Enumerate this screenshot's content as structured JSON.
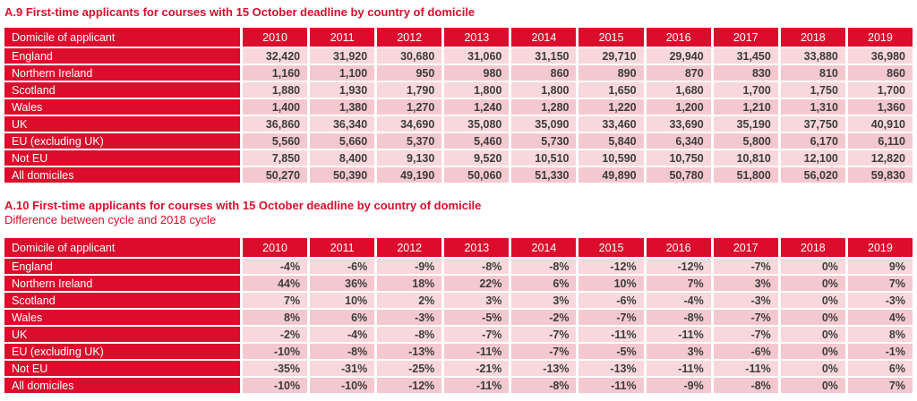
{
  "colors": {
    "brand_red": "#dc0c2c",
    "cell_pink_light": "#f8d8dc",
    "cell_pink_dark": "#f4c8cf",
    "header_text": "#ffffff",
    "value_text": "#3c3c3c",
    "page_background": "#ffffff"
  },
  "tables": [
    {
      "name": "A.9",
      "title": "A.9 First-time applicants for courses with 15 October deadline by country of domicile",
      "label_header": "Domicile of applicant",
      "columns": [
        "2010",
        "2011",
        "2012",
        "2013",
        "2014",
        "2015",
        "2016",
        "2017",
        "2018",
        "2019"
      ],
      "rows": [
        {
          "label": "England",
          "values": [
            "32,420",
            "31,920",
            "30,680",
            "31,060",
            "31,150",
            "29,710",
            "29,940",
            "31,450",
            "33,880",
            "36,980"
          ]
        },
        {
          "label": "Northern Ireland",
          "values": [
            "1,160",
            "1,100",
            "950",
            "980",
            "860",
            "890",
            "870",
            "830",
            "810",
            "860"
          ]
        },
        {
          "label": "Scotland",
          "values": [
            "1,880",
            "1,930",
            "1,790",
            "1,800",
            "1,800",
            "1,650",
            "1,680",
            "1,700",
            "1,750",
            "1,700"
          ]
        },
        {
          "label": "Wales",
          "values": [
            "1,400",
            "1,380",
            "1,270",
            "1,240",
            "1,280",
            "1,220",
            "1,200",
            "1,210",
            "1,310",
            "1,360"
          ]
        },
        {
          "label": "UK",
          "values": [
            "36,860",
            "36,340",
            "34,690",
            "35,080",
            "35,090",
            "33,460",
            "33,690",
            "35,190",
            "37,750",
            "40,910"
          ]
        },
        {
          "label": "EU (excluding UK)",
          "values": [
            "5,560",
            "5,660",
            "5,370",
            "5,460",
            "5,730",
            "5,840",
            "6,340",
            "5,800",
            "6,170",
            "6,110"
          ]
        },
        {
          "label": "Not EU",
          "values": [
            "7,850",
            "8,400",
            "9,130",
            "9,520",
            "10,510",
            "10,590",
            "10,750",
            "10,810",
            "12,100",
            "12,820"
          ]
        },
        {
          "label": "All domiciles",
          "values": [
            "50,270",
            "50,390",
            "49,190",
            "50,060",
            "51,330",
            "49,890",
            "50,780",
            "51,800",
            "56,020",
            "59,830"
          ]
        }
      ]
    },
    {
      "name": "A.10",
      "title": "A.10 First-time applicants for courses with 15 October deadline by country of domicile",
      "subtitle": "Difference between cycle and 2018 cycle",
      "label_header": "Domicile of applicant",
      "columns": [
        "2010",
        "2011",
        "2012",
        "2013",
        "2014",
        "2015",
        "2016",
        "2017",
        "2018",
        "2019"
      ],
      "rows": [
        {
          "label": "England",
          "values": [
            "-4%",
            "-6%",
            "-9%",
            "-8%",
            "-8%",
            "-12%",
            "-12%",
            "-7%",
            "0%",
            "9%"
          ]
        },
        {
          "label": "Northern Ireland",
          "values": [
            "44%",
            "36%",
            "18%",
            "22%",
            "6%",
            "10%",
            "7%",
            "3%",
            "0%",
            "7%"
          ]
        },
        {
          "label": "Scotland",
          "values": [
            "7%",
            "10%",
            "2%",
            "3%",
            "3%",
            "-6%",
            "-4%",
            "-3%",
            "0%",
            "-3%"
          ]
        },
        {
          "label": "Wales",
          "values": [
            "8%",
            "6%",
            "-3%",
            "-5%",
            "-2%",
            "-7%",
            "-8%",
            "-7%",
            "0%",
            "4%"
          ]
        },
        {
          "label": "UK",
          "values": [
            "-2%",
            "-4%",
            "-8%",
            "-7%",
            "-7%",
            "-11%",
            "-11%",
            "-7%",
            "0%",
            "8%"
          ]
        },
        {
          "label": "EU (excluding UK)",
          "values": [
            "-10%",
            "-8%",
            "-13%",
            "-11%",
            "-7%",
            "-5%",
            "3%",
            "-6%",
            "0%",
            "-1%"
          ]
        },
        {
          "label": "Not EU",
          "values": [
            "-35%",
            "-31%",
            "-25%",
            "-21%",
            "-13%",
            "-13%",
            "-11%",
            "-11%",
            "0%",
            "6%"
          ]
        },
        {
          "label": "All domiciles",
          "values": [
            "-10%",
            "-10%",
            "-12%",
            "-11%",
            "-8%",
            "-11%",
            "-9%",
            "-8%",
            "0%",
            "7%"
          ]
        }
      ]
    }
  ]
}
